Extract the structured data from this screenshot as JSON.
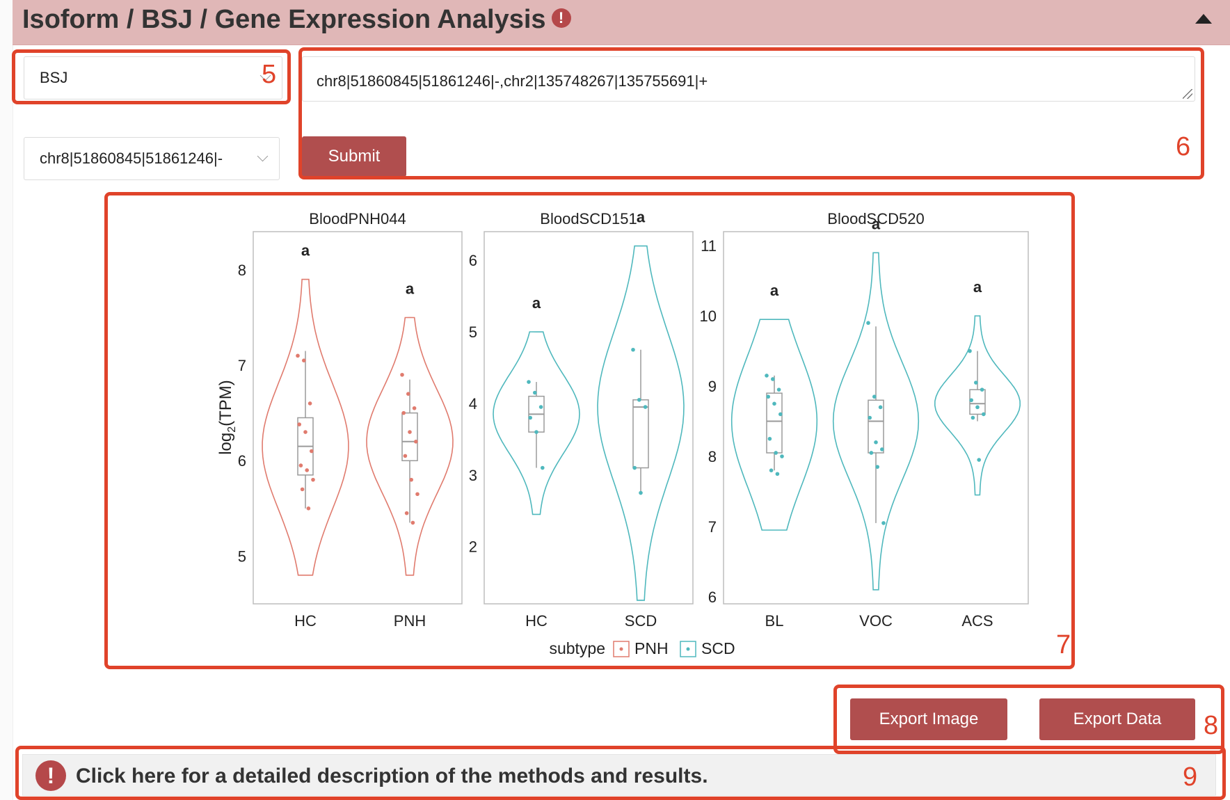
{
  "header": {
    "title": "Isoform / BSJ / Gene Expression Analysis",
    "warn_glyph": "!"
  },
  "controls": {
    "type_select": {
      "value": "BSJ"
    },
    "id_select": {
      "value": "chr8|51860845|51861246|-"
    },
    "query_textarea": {
      "value": "chr8|51860845|51861246|-,chr2|135748267|135755691|+"
    },
    "submit_label": "Submit"
  },
  "annotations": {
    "n5": "5",
    "n6": "6",
    "n7": "7",
    "n8": "8",
    "n9": "9"
  },
  "export": {
    "image_label": "Export Image",
    "data_label": "Export Data"
  },
  "description": {
    "icon_glyph": "!",
    "text": "Click here for a detailed description of the methods and results."
  },
  "colors": {
    "pnh": "#e07b6e",
    "scd": "#4fb8bd",
    "button": "#b04e4e",
    "header_bg": "#e0b7b7",
    "callout": "#e0432a"
  },
  "chart_data": {
    "type": "violin",
    "ylabel": "log2(TPM)",
    "legend": {
      "title": "subtype",
      "placement": "bottom",
      "entries": [
        "PNH",
        "SCD"
      ]
    },
    "panels": [
      {
        "title": "BloodPNH044",
        "ylim": [
          4.5,
          8.4
        ],
        "yticks": [
          5,
          6,
          7,
          8
        ],
        "groups": [
          {
            "name": "HC",
            "subtype": "PNH",
            "letter": "a",
            "min": 4.8,
            "max": 7.9,
            "q1": 5.85,
            "median": 6.15,
            "q3": 6.45,
            "whisker_low": 5.5,
            "whisker_high": 7.15,
            "points": [
              7.1,
              7.05,
              6.6,
              6.38,
              6.3,
              6.1,
              5.95,
              5.9,
              5.8,
              5.7,
              5.5
            ]
          },
          {
            "name": "PNH",
            "subtype": "PNH",
            "letter": "a",
            "min": 4.8,
            "max": 7.5,
            "q1": 6.0,
            "median": 6.2,
            "q3": 6.5,
            "whisker_low": 5.35,
            "whisker_high": 6.85,
            "points": [
              6.9,
              6.7,
              6.55,
              6.5,
              6.3,
              6.2,
              6.05,
              5.8,
              5.65,
              5.45,
              5.35
            ]
          }
        ]
      },
      {
        "title": "BloodSCD151",
        "ylim": [
          1.2,
          6.4
        ],
        "yticks": [
          2,
          3,
          4,
          5,
          6
        ],
        "groups": [
          {
            "name": "HC",
            "subtype": "SCD",
            "letter": "a",
            "min": 2.45,
            "max": 5.0,
            "q1": 3.6,
            "median": 3.85,
            "q3": 4.1,
            "whisker_low": 3.1,
            "whisker_high": 4.3,
            "points": [
              4.3,
              4.15,
              3.95,
              3.8,
              3.6,
              3.1
            ]
          },
          {
            "name": "SCD",
            "subtype": "SCD",
            "letter": "a",
            "min": 1.25,
            "max": 6.2,
            "q1": 3.1,
            "median": 3.95,
            "q3": 4.05,
            "whisker_low": 2.75,
            "whisker_high": 4.75,
            "points": [
              4.75,
              4.05,
              3.95,
              3.1,
              2.75
            ]
          }
        ]
      },
      {
        "title": "BloodSCD520",
        "ylim": [
          5.9,
          11.2
        ],
        "yticks": [
          6,
          7,
          8,
          9,
          10,
          11
        ],
        "groups": [
          {
            "name": "BL",
            "subtype": "SCD",
            "letter": "a",
            "min": 6.95,
            "max": 9.95,
            "q1": 8.05,
            "median": 8.5,
            "q3": 8.9,
            "whisker_low": 7.8,
            "whisker_high": 9.15,
            "points": [
              9.15,
              9.1,
              8.95,
              8.85,
              8.75,
              8.6,
              8.25,
              8.05,
              8.0,
              7.8,
              7.75
            ]
          },
          {
            "name": "VOC",
            "subtype": "SCD",
            "letter": "a",
            "min": 6.1,
            "max": 10.9,
            "q1": 8.05,
            "median": 8.5,
            "q3": 8.8,
            "whisker_low": 7.05,
            "whisker_high": 9.85,
            "points": [
              9.9,
              8.85,
              8.7,
              8.55,
              8.2,
              8.1,
              8.05,
              7.85,
              7.05
            ]
          },
          {
            "name": "ACS",
            "subtype": "SCD",
            "letter": "a",
            "min": 7.45,
            "max": 10.0,
            "q1": 8.6,
            "median": 8.75,
            "q3": 8.95,
            "whisker_low": 8.5,
            "whisker_high": 9.5,
            "points": [
              9.5,
              9.05,
              8.95,
              8.8,
              8.7,
              8.6,
              8.55,
              7.95
            ]
          }
        ]
      }
    ]
  }
}
